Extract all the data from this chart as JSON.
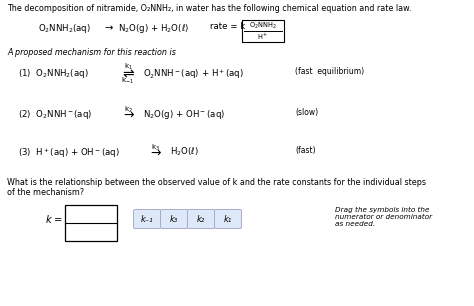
{
  "bg_color": "#ffffff",
  "title_text": "The decomposition of nitramide, O₂NNH₂, in water has the following chemical equation and rate law.",
  "mechanism_header": "A proposed mechanism for this reaction is",
  "question": "What is the relationship between the observed value of k and the rate constants for the individual steps\nof the mechanism?",
  "drag_text": "Drag the symbols into the\nnumerator or denominator\nas needed.",
  "btn_labels": [
    "k₋₁",
    "k₃",
    "k₂",
    "k₁"
  ],
  "fs_title": 5.8,
  "fs_body": 5.8,
  "fs_math": 6.2,
  "fs_small": 5.2,
  "fs_label": 5.5
}
